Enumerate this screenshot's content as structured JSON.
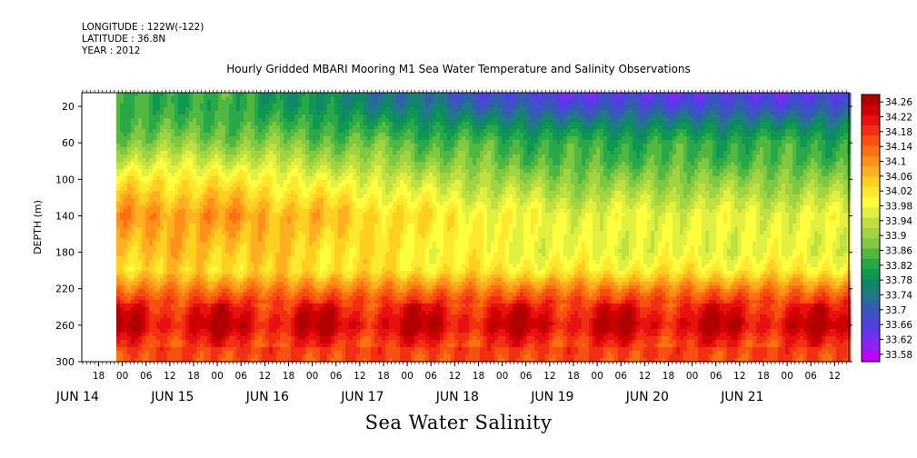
{
  "header": {
    "longitude": "LONGITUDE : 122W(-122)",
    "latitude": "LATITUDE : 36.8N",
    "year": "YEAR : 2012",
    "title": "Hourly Gridded MBARI Mooring M1 Sea Water Temperature and Salinity Observations"
  },
  "footer": {
    "subtitle": "Sea Water Salinity"
  },
  "chart_data": {
    "type": "heatmap",
    "title": "Hourly Gridded MBARI Mooring M1 Sea Water Temperature and Salinity Observations",
    "subtitle": "Sea Water Salinity",
    "ylabel": "DEPTH (m)",
    "ylim": [
      300,
      5
    ],
    "y_reversed": true,
    "y_ticks": [
      20,
      60,
      100,
      140,
      180,
      220,
      260,
      300
    ],
    "xlim_hours_label": "JUN 14 12:00 to JUN 21 18:00",
    "x_hour_ticks": [
      "18",
      "00",
      "06",
      "12",
      "18",
      "00",
      "06",
      "12",
      "18",
      "00",
      "06",
      "12",
      "18",
      "00",
      "06",
      "12",
      "18",
      "00",
      "06",
      "12",
      "18",
      "00",
      "06",
      "12",
      "18",
      "00",
      "06",
      "12",
      "18",
      "00",
      "06",
      "12"
    ],
    "x_day_labels": [
      "JUN 14",
      "JUN 15",
      "JUN 16",
      "JUN 17",
      "JUN 18",
      "JUN 19",
      "JUN 20",
      "JUN 21"
    ],
    "data_start": "JUN 15 00:00",
    "colorbar": {
      "levels": [
        "34.26",
        "34.22",
        "34.18",
        "34.14",
        "34.1",
        "34.06",
        "34.02",
        "33.98",
        "33.94",
        "33.9",
        "33.86",
        "33.82",
        "33.78",
        "33.74",
        "33.7",
        "33.66",
        "33.62",
        "33.58"
      ],
      "min": 33.58,
      "max": 34.28,
      "colors": [
        "#b00000",
        "#d00000",
        "#e81010",
        "#f03010",
        "#f85010",
        "#ff7010",
        "#ff9018",
        "#ffb020",
        "#ffd020",
        "#ffe830",
        "#ffff40",
        "#e0f040",
        "#c0e040",
        "#a0d440",
        "#80c840",
        "#50b840",
        "#28a848",
        "#109850",
        "#108868",
        "#207888",
        "#3060a8",
        "#4050c8",
        "#5040e0",
        "#7030f0",
        "#9020f0",
        "#c000ff"
      ]
    },
    "profile": {
      "depths": [
        5,
        20,
        40,
        60,
        80,
        100,
        120,
        140,
        160,
        180,
        200,
        220,
        240,
        260,
        280,
        300
      ],
      "salinity_early": [
        33.84,
        33.84,
        33.86,
        33.9,
        33.96,
        34.02,
        34.06,
        34.1,
        34.08,
        34.06,
        34.04,
        34.12,
        34.2,
        34.24,
        34.18,
        34.16
      ],
      "salinity_late": [
        33.66,
        33.7,
        33.78,
        33.84,
        33.86,
        33.9,
        33.94,
        33.98,
        33.98,
        33.98,
        34.02,
        34.12,
        34.2,
        34.24,
        34.18,
        34.16
      ]
    }
  }
}
